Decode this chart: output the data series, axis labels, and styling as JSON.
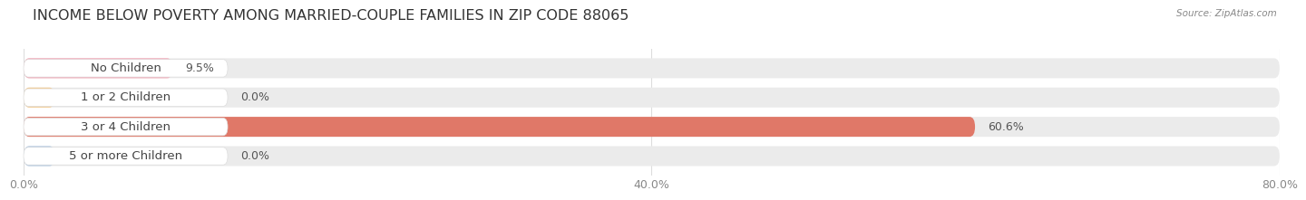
{
  "title": "INCOME BELOW POVERTY AMONG MARRIED-COUPLE FAMILIES IN ZIP CODE 88065",
  "source": "Source: ZipAtlas.com",
  "categories": [
    "No Children",
    "1 or 2 Children",
    "3 or 4 Children",
    "5 or more Children"
  ],
  "values": [
    9.5,
    0.0,
    60.6,
    0.0
  ],
  "bar_colors": [
    "#f4a0b0",
    "#f5c98a",
    "#e07868",
    "#a8c4e0"
  ],
  "xlim": [
    0,
    80
  ],
  "xticks": [
    0.0,
    40.0,
    80.0
  ],
  "xtick_labels": [
    "0.0%",
    "40.0%",
    "80.0%"
  ],
  "bg_color": "#ffffff",
  "bar_bg_color": "#ebebeb",
  "title_fontsize": 11.5,
  "tick_fontsize": 9,
  "label_fontsize": 9.5,
  "value_fontsize": 9
}
